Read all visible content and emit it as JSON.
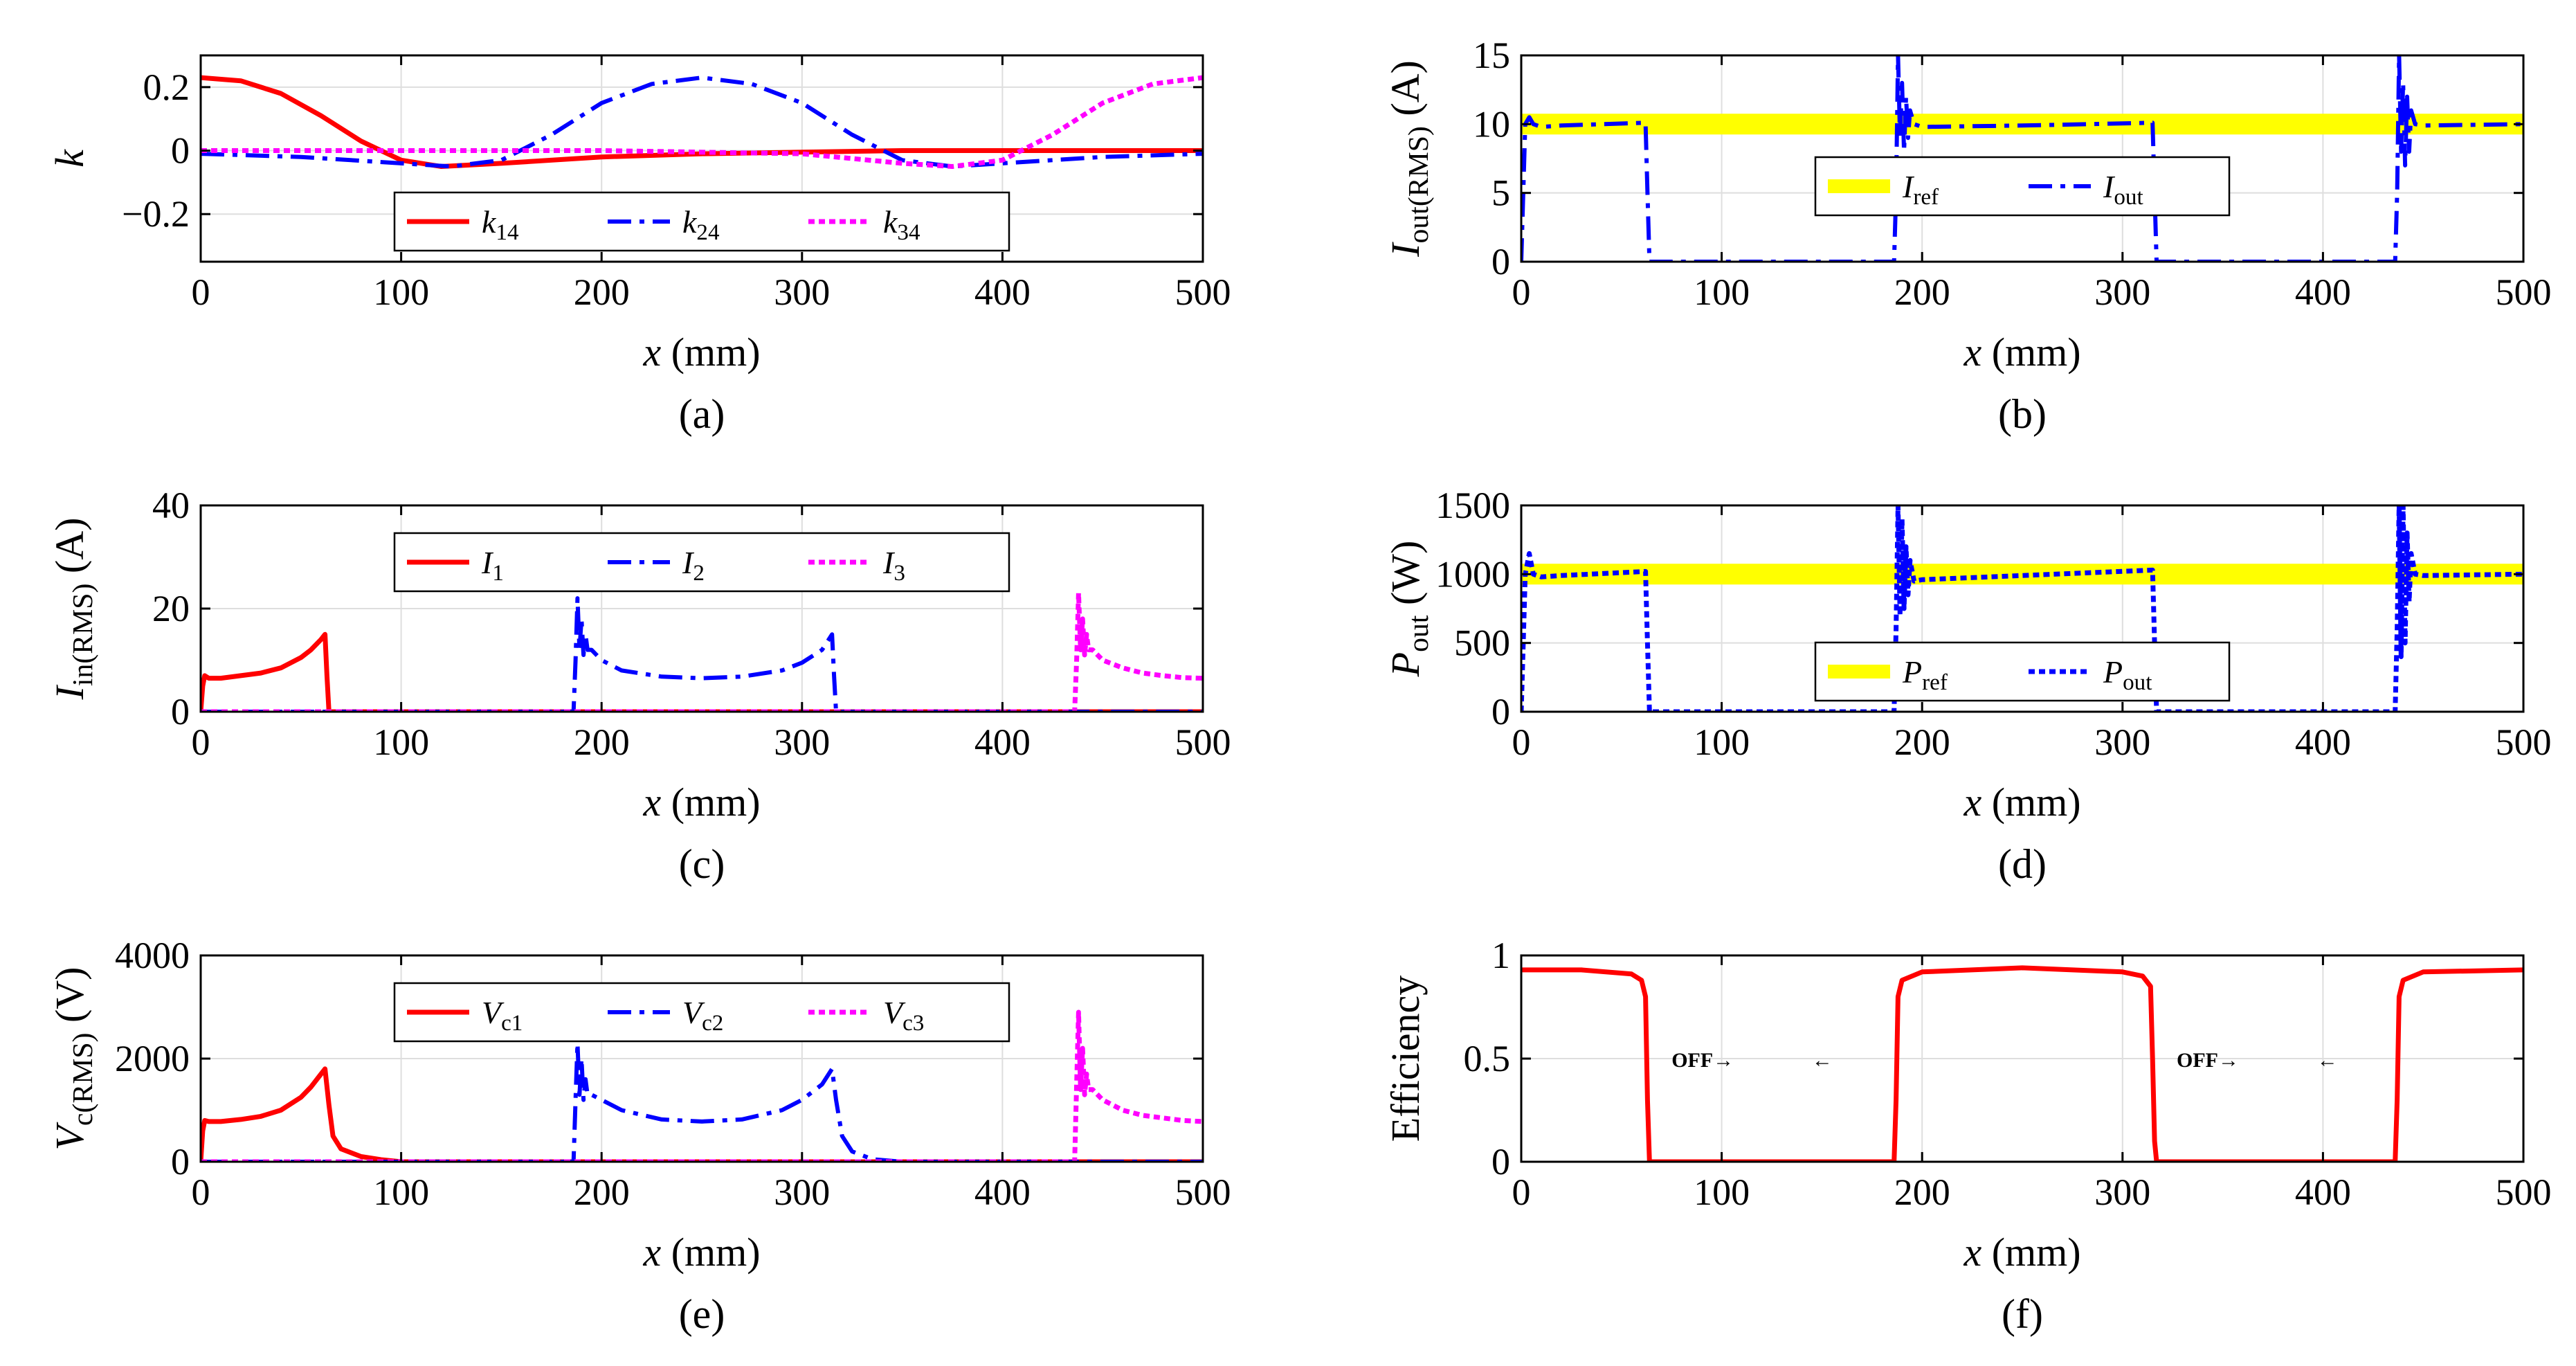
{
  "colors": {
    "red": "#ff0000",
    "blue": "#0000ff",
    "magenta": "#ff00ff",
    "yellow": "#ffff00",
    "grid": "#dedede"
  },
  "chart_data": [
    {
      "id": "a",
      "type": "line",
      "panel_label": "(a)",
      "xlabel": "x (mm)",
      "ylabel": "k",
      "xlim": [
        0,
        500
      ],
      "ylim": [
        -0.35,
        0.3
      ],
      "xticks": [
        0,
        100,
        200,
        300,
        400,
        500
      ],
      "xtick_labels": [
        "0",
        "100",
        "200",
        "300",
        "400",
        "500"
      ],
      "yticks": [
        -0.2,
        0,
        0.2
      ],
      "ytick_labels": [
        "−0.2",
        "0",
        "0.2"
      ],
      "legend": {
        "position": "bottom-center"
      },
      "series": [
        {
          "name": "k14",
          "base": "k",
          "sub": "14",
          "color": "red",
          "dash": "solid",
          "x": [
            0,
            20,
            40,
            60,
            80,
            100,
            120,
            150,
            200,
            250,
            300,
            350,
            400,
            450,
            500
          ],
          "y": [
            0.23,
            0.22,
            0.18,
            0.11,
            0.03,
            -0.03,
            -0.05,
            -0.04,
            -0.02,
            -0.01,
            -0.005,
            0,
            0,
            0,
            0
          ]
        },
        {
          "name": "k24",
          "base": "k",
          "sub": "24",
          "color": "blue",
          "dash": "dashdot",
          "x": [
            0,
            50,
            100,
            125,
            150,
            175,
            200,
            225,
            250,
            275,
            300,
            325,
            350,
            375,
            400,
            450,
            500
          ],
          "y": [
            -0.01,
            -0.02,
            -0.04,
            -0.05,
            -0.03,
            0.05,
            0.15,
            0.21,
            0.23,
            0.21,
            0.15,
            0.05,
            -0.03,
            -0.05,
            -0.04,
            -0.02,
            -0.01
          ]
        },
        {
          "name": "k34",
          "base": "k",
          "sub": "34",
          "color": "magenta",
          "dash": "dotted",
          "x": [
            0,
            100,
            200,
            300,
            350,
            375,
            400,
            425,
            450,
            475,
            500
          ],
          "y": [
            0,
            0,
            0,
            -0.01,
            -0.04,
            -0.05,
            -0.03,
            0.05,
            0.15,
            0.21,
            0.23
          ]
        }
      ]
    },
    {
      "id": "b",
      "type": "line",
      "panel_label": "(b)",
      "xlabel": "x (mm)",
      "ylabel": "Iout(RMS) (A)",
      "ylabel_base": "I",
      "ylabel_sub": "out(RMS)",
      "ylabel_unit": " (A)",
      "xlim": [
        0,
        500
      ],
      "ylim": [
        0,
        15
      ],
      "xticks": [
        0,
        100,
        200,
        300,
        400,
        500
      ],
      "xtick_labels": [
        "0",
        "100",
        "200",
        "300",
        "400",
        "500"
      ],
      "yticks": [
        0,
        5,
        10,
        15
      ],
      "ytick_labels": [
        "0",
        "5",
        "10",
        "15"
      ],
      "legend": {
        "position": "center"
      },
      "series": [
        {
          "name": "Iref",
          "base": "I",
          "sub": "ref",
          "color": "yellow",
          "dash": "thick",
          "x": [
            0,
            500
          ],
          "y": [
            10,
            10
          ]
        },
        {
          "name": "Iout",
          "base": "I",
          "sub": "out",
          "color": "blue",
          "dash": "dashdot",
          "x": [
            0,
            2,
            4,
            6,
            10,
            20,
            62,
            63,
            64,
            186,
            187,
            188,
            189,
            190,
            191,
            192,
            193,
            194,
            196,
            200,
            250,
            315,
            316,
            317,
            436,
            437,
            438,
            439,
            440,
            441,
            442,
            443,
            444,
            446,
            450,
            500
          ],
          "y": [
            0,
            10,
            10.5,
            10,
            9.8,
            9.9,
            10.1,
            5,
            0,
            0,
            5,
            15,
            9,
            13,
            8,
            12,
            9,
            11,
            10,
            9.8,
            9.9,
            10.1,
            5,
            0,
            0,
            5,
            15,
            8,
            13,
            7,
            12,
            8,
            11,
            10,
            9.9,
            10
          ]
        }
      ]
    },
    {
      "id": "c",
      "type": "line",
      "panel_label": "(c)",
      "xlabel": "x (mm)",
      "ylabel": "Iin(RMS) (A)",
      "ylabel_base": "I",
      "ylabel_sub": "in(RMS)",
      "ylabel_unit": " (A)",
      "xlim": [
        0,
        500
      ],
      "ylim": [
        0,
        40
      ],
      "xticks": [
        0,
        100,
        200,
        300,
        400,
        500
      ],
      "xtick_labels": [
        "0",
        "100",
        "200",
        "300",
        "400",
        "500"
      ],
      "yticks": [
        0,
        20,
        40
      ],
      "ytick_labels": [
        "0",
        "20",
        "40"
      ],
      "legend": {
        "position": "top-center"
      },
      "series": [
        {
          "name": "I1",
          "base": "I",
          "sub": "1",
          "color": "red",
          "dash": "solid",
          "x": [
            0,
            1,
            2,
            4,
            10,
            20,
            30,
            40,
            50,
            55,
            60,
            62,
            63,
            64,
            500
          ],
          "y": [
            0,
            5,
            7,
            6.5,
            6.5,
            7,
            7.5,
            8.5,
            10.5,
            12,
            14,
            15,
            7,
            0,
            0
          ]
        },
        {
          "name": "I2",
          "base": "I",
          "sub": "2",
          "color": "blue",
          "dash": "dashdot",
          "x": [
            0,
            186,
            187,
            188,
            189,
            190,
            191,
            192,
            193,
            195,
            200,
            210,
            230,
            250,
            270,
            290,
            300,
            310,
            315,
            316,
            317,
            500
          ],
          "y": [
            0,
            0,
            10,
            22,
            12,
            18,
            11,
            15,
            12,
            12,
            10,
            8,
            6.8,
            6.5,
            6.8,
            8,
            9.5,
            12,
            15,
            7,
            0,
            0
          ]
        },
        {
          "name": "I3",
          "base": "I",
          "sub": "3",
          "color": "magenta",
          "dash": "dotted",
          "x": [
            0,
            436,
            437,
            438,
            439,
            440,
            441,
            442,
            443,
            445,
            450,
            460,
            470,
            480,
            490,
            500
          ],
          "y": [
            0,
            0,
            10,
            23,
            12,
            18,
            11,
            15,
            12,
            12,
            10,
            8.5,
            7.5,
            7,
            6.6,
            6.5
          ]
        }
      ]
    },
    {
      "id": "d",
      "type": "line",
      "panel_label": "(d)",
      "xlabel": "x (mm)",
      "ylabel": "Pout (W)",
      "ylabel_base": "P",
      "ylabel_sub": "out",
      "ylabel_unit": " (W)",
      "xlim": [
        0,
        500
      ],
      "ylim": [
        0,
        1500
      ],
      "xticks": [
        0,
        100,
        200,
        300,
        400,
        500
      ],
      "xtick_labels": [
        "0",
        "100",
        "200",
        "300",
        "400",
        "500"
      ],
      "yticks": [
        0,
        500,
        1000,
        1500
      ],
      "ytick_labels": [
        "0",
        "500",
        "1000",
        "1500"
      ],
      "legend": {
        "position": "bottom-center"
      },
      "series": [
        {
          "name": "Pref",
          "base": "P",
          "sub": "ref",
          "color": "yellow",
          "dash": "thick",
          "x": [
            0,
            500
          ],
          "y": [
            1000,
            1000
          ]
        },
        {
          "name": "Pout",
          "base": "P",
          "sub": "out",
          "color": "blue",
          "dash": "dotted",
          "x": [
            0,
            2,
            4,
            6,
            10,
            20,
            62,
            63,
            64,
            186,
            187,
            188,
            189,
            190,
            191,
            192,
            193,
            194,
            196,
            200,
            250,
            315,
            316,
            317,
            436,
            437,
            438,
            439,
            440,
            441,
            442,
            443,
            444,
            446,
            450,
            500
          ],
          "y": [
            0,
            1000,
            1150,
            1000,
            980,
            990,
            1020,
            500,
            0,
            0,
            600,
            1500,
            700,
            1400,
            750,
            1200,
            850,
            1100,
            950,
            960,
            990,
            1030,
            500,
            0,
            0,
            600,
            1500,
            400,
            1500,
            500,
            1300,
            800,
            1150,
            1000,
            990,
            1000
          ]
        }
      ]
    },
    {
      "id": "e",
      "type": "line",
      "panel_label": "(e)",
      "xlabel": "x (mm)",
      "ylabel": "Vc(RMS) (V)",
      "ylabel_base": "V",
      "ylabel_sub": "c(RMS)",
      "ylabel_unit": " (V)",
      "xlim": [
        0,
        500
      ],
      "ylim": [
        0,
        4000
      ],
      "xticks": [
        0,
        100,
        200,
        300,
        400,
        500
      ],
      "xtick_labels": [
        "0",
        "100",
        "200",
        "300",
        "400",
        "500"
      ],
      "yticks": [
        0,
        2000,
        4000
      ],
      "ytick_labels": [
        "0",
        "2000",
        "4000"
      ],
      "legend": {
        "position": "top-center"
      },
      "series": [
        {
          "name": "Vc1",
          "base": "V",
          "sub": "c1",
          "color": "red",
          "dash": "solid",
          "x": [
            0,
            1,
            2,
            4,
            10,
            20,
            30,
            40,
            50,
            55,
            60,
            62,
            64,
            66,
            70,
            80,
            90,
            100,
            500
          ],
          "y": [
            0,
            600,
            800,
            780,
            780,
            820,
            880,
            1000,
            1250,
            1450,
            1700,
            1800,
            1100,
            500,
            250,
            100,
            40,
            0,
            0
          ]
        },
        {
          "name": "Vc2",
          "base": "V",
          "sub": "c2",
          "color": "blue",
          "dash": "dashdot",
          "x": [
            0,
            186,
            187,
            188,
            189,
            190,
            191,
            192,
            193,
            195,
            200,
            210,
            230,
            250,
            270,
            290,
            300,
            310,
            315,
            317,
            320,
            325,
            335,
            350,
            500
          ],
          "y": [
            0,
            0,
            1200,
            2300,
            1300,
            2000,
            1200,
            1600,
            1300,
            1300,
            1200,
            1000,
            820,
            780,
            820,
            1000,
            1200,
            1500,
            1800,
            1200,
            500,
            200,
            50,
            0,
            0
          ]
        },
        {
          "name": "Vc3",
          "base": "V",
          "sub": "c3",
          "color": "magenta",
          "dash": "dotted",
          "x": [
            0,
            436,
            437,
            438,
            439,
            440,
            441,
            442,
            443,
            445,
            450,
            460,
            470,
            480,
            490,
            500
          ],
          "y": [
            0,
            0,
            1500,
            2900,
            1400,
            2200,
            1300,
            1700,
            1400,
            1400,
            1200,
            1000,
            900,
            850,
            800,
            780
          ]
        }
      ]
    },
    {
      "id": "f",
      "type": "line",
      "panel_label": "(f)",
      "xlabel": "x (mm)",
      "ylabel": "Efficiency",
      "xlim": [
        0,
        500
      ],
      "ylim": [
        0,
        1
      ],
      "xticks": [
        0,
        100,
        200,
        300,
        400,
        500
      ],
      "xtick_labels": [
        "0",
        "100",
        "200",
        "300",
        "400",
        "500"
      ],
      "yticks": [
        0,
        0.5,
        1
      ],
      "ytick_labels": [
        "0",
        "0.5",
        "1"
      ],
      "legend": null,
      "annotations": [
        {
          "text": "OFF→",
          "x": 75,
          "y": 0.5
        },
        {
          "text": "←",
          "x": 145,
          "y": 0.5
        },
        {
          "text": "OFF→",
          "x": 327,
          "y": 0.5
        },
        {
          "text": "←",
          "x": 397,
          "y": 0.5
        }
      ],
      "series": [
        {
          "name": "Efficiency",
          "color": "red",
          "dash": "solid",
          "x": [
            0,
            30,
            55,
            60,
            62,
            63,
            64,
            186,
            187,
            188,
            190,
            200,
            250,
            300,
            310,
            314,
            315,
            316,
            317,
            436,
            437,
            438,
            440,
            450,
            500
          ],
          "y": [
            0.93,
            0.93,
            0.91,
            0.88,
            0.8,
            0.3,
            0,
            0,
            0.3,
            0.8,
            0.88,
            0.92,
            0.94,
            0.92,
            0.9,
            0.85,
            0.5,
            0.1,
            0,
            0,
            0.3,
            0.8,
            0.88,
            0.92,
            0.93
          ]
        }
      ]
    }
  ]
}
